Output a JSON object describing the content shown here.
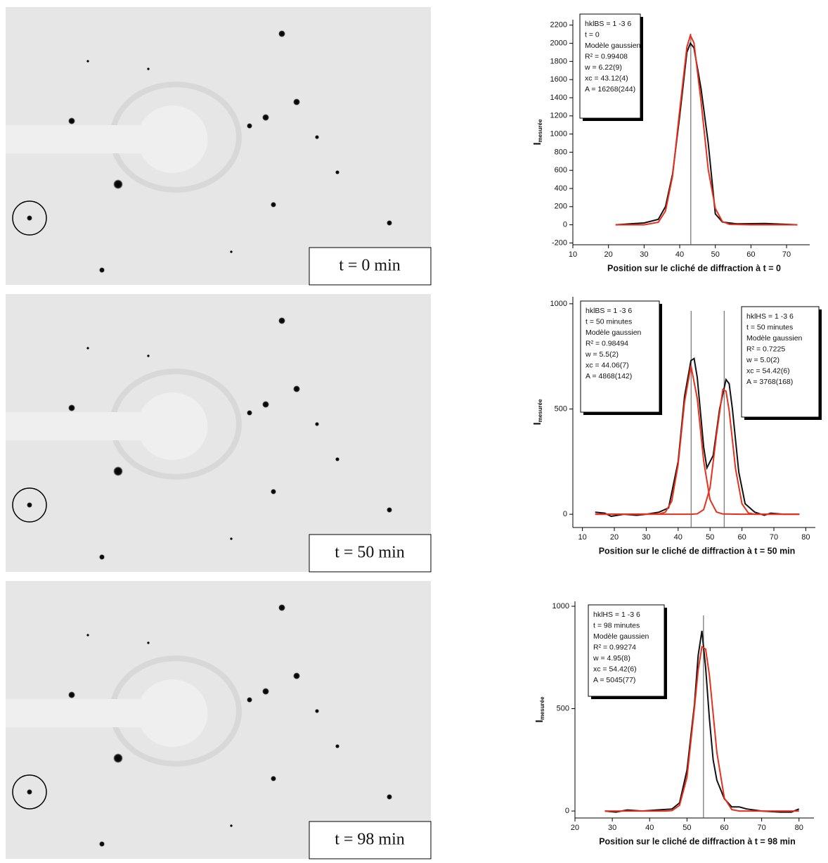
{
  "images": [
    {
      "label": "t = 0 min"
    },
    {
      "label": "t = 50 min"
    },
    {
      "label": "t = 98 min"
    }
  ],
  "chart_data": [
    {
      "type": "line",
      "xlabel": "Position sur le cliché de diffraction à t = 0",
      "ylabel": "I",
      "ylabel_sub": "mesurée",
      "xlim": [
        10,
        76.5
      ],
      "xticks": [
        10,
        20,
        30,
        40,
        50,
        60,
        70
      ],
      "ylim": [
        -220,
        2260
      ],
      "yticks": [
        -200,
        0,
        200,
        400,
        600,
        800,
        1000,
        1200,
        1400,
        1600,
        1800,
        2000,
        2200
      ],
      "vlines": [
        43.12
      ],
      "annotations": [
        [
          "hklBS = 1 -3 6",
          "t = 0",
          "Modèle gaussien",
          "R² = 0.99408",
          "w = 6.22(9)",
          "xc = 43.12(4)",
          "A = 16268(244)"
        ]
      ],
      "series": [
        {
          "color": "#111111",
          "x": [
            22,
            26,
            30,
            34,
            36,
            38,
            40,
            42,
            43,
            44,
            46,
            48,
            50,
            52,
            56,
            64,
            73
          ],
          "values": [
            0,
            10,
            20,
            60,
            200,
            560,
            1200,
            1900,
            2000,
            1950,
            1500,
            900,
            120,
            30,
            10,
            15,
            0
          ]
        },
        {
          "color": "#e8301c",
          "x": [
            22,
            30,
            34,
            36,
            38,
            40,
            42,
            43,
            44,
            46,
            48,
            50,
            52,
            54,
            60,
            73
          ],
          "values": [
            0,
            0,
            28,
            152,
            538,
            1262,
            1956,
            2087,
            2005,
            1359,
            609,
            181,
            35,
            5,
            0,
            0
          ]
        }
      ]
    },
    {
      "type": "line",
      "xlabel": "Position sur le cliché de diffraction à t = 50 min",
      "ylabel": "I",
      "ylabel_sub": "mesurée",
      "xlim": [
        7,
        83
      ],
      "xticks": [
        10,
        20,
        30,
        40,
        50,
        60,
        70,
        80
      ],
      "ylim": [
        -63,
        1033
      ],
      "yticks": [
        0,
        500,
        1000
      ],
      "vlines": [
        44.06,
        54.42
      ],
      "annotations": [
        [
          "hklBS = 1 -3 6",
          "t = 50 minutes",
          "Modèle gaussien",
          "R² = 0.98494",
          "w = 5.5(2)",
          "xc = 44.06(7)",
          "A = 4868(142)"
        ],
        [
          "hklHS = 1 -3 6",
          "t = 50 minutes",
          "Modèle gaussien",
          "R² = 0.7225",
          "w = 5.0(2)",
          "xc = 54.42(6)",
          "A = 3768(168)"
        ]
      ],
      "series": [
        {
          "color": "#111111",
          "x": [
            14,
            17,
            19,
            23,
            27,
            30,
            34,
            37,
            40,
            42,
            44,
            45,
            46,
            48,
            49,
            51,
            53,
            55,
            56,
            57,
            59,
            61,
            64,
            67,
            69,
            73,
            78
          ],
          "values": [
            10,
            5,
            -10,
            0,
            -5,
            0,
            10,
            30,
            250,
            560,
            730,
            740,
            650,
            320,
            220,
            280,
            500,
            640,
            620,
            500,
            200,
            50,
            10,
            -5,
            5,
            0,
            0
          ]
        },
        {
          "color": "#e8301c",
          "x": [
            14,
            34,
            36,
            38,
            40,
            42,
            44,
            46,
            48,
            50,
            52,
            54,
            60,
            78
          ],
          "values": [
            0,
            1,
            10,
            62,
            237,
            533,
            706,
            550,
            253,
            69,
            11,
            1,
            0,
            0
          ]
        },
        {
          "color": "#e8301c",
          "x": [
            14,
            44,
            46,
            48,
            50,
            52,
            54,
            55,
            56,
            58,
            60,
            62,
            64,
            78
          ],
          "values": [
            0,
            0,
            2,
            22,
            126,
            376,
            593,
            585,
            492,
            215,
            50,
            6,
            0,
            0
          ]
        }
      ]
    },
    {
      "type": "line",
      "xlabel": "Position sur le cliché de diffraction à t = 98 min",
      "ylabel": "I",
      "ylabel_sub": "mesurée",
      "xlim": [
        20,
        84
      ],
      "xticks": [
        20,
        30,
        40,
        50,
        60,
        70,
        80
      ],
      "ylim": [
        -34,
        1024
      ],
      "yticks": [
        0,
        500,
        1000
      ],
      "vlines": [
        54.42
      ],
      "annotations": [
        [
          "hklHS = 1 -3 6",
          "t = 98 minutes",
          "Modèle gaussien",
          "R² = 0.99274",
          "w = 4.95(8)",
          "xc = 54.42(6)",
          "A = 5045(77)"
        ]
      ],
      "series": [
        {
          "color": "#111111",
          "x": [
            28,
            31,
            34,
            38,
            42,
            46,
            48,
            50,
            52,
            53,
            54,
            55,
            56,
            57,
            58,
            60,
            62,
            64,
            66,
            70,
            75,
            78,
            80
          ],
          "values": [
            0,
            -5,
            5,
            0,
            5,
            10,
            40,
            200,
            520,
            760,
            880,
            700,
            450,
            250,
            150,
            60,
            20,
            20,
            10,
            0,
            -5,
            -5,
            10
          ]
        },
        {
          "color": "#e8301c",
          "x": [
            28,
            44,
            46,
            48,
            50,
            52,
            53,
            54,
            55,
            56,
            58,
            60,
            62,
            64,
            80
          ],
          "values": [
            0,
            0,
            2,
            28,
            165,
            504,
            689,
            802,
            791,
            663,
            286,
            64,
            7,
            0,
            0
          ]
        }
      ]
    }
  ]
}
